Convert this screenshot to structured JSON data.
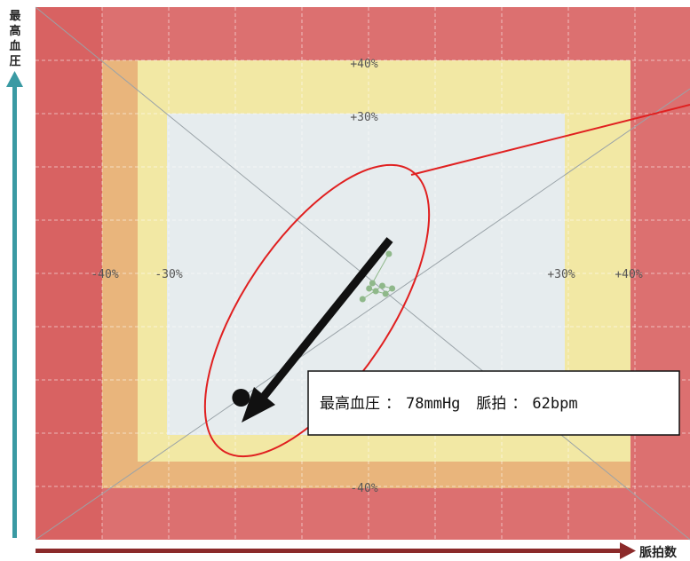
{
  "chart_data": {
    "type": "scatter",
    "title": "",
    "ylabel": "最高血圧",
    "xlabel": "脈拍数",
    "zone_labels": {
      "top_40": "+40%",
      "top_30": "+30%",
      "left_40": "-40%",
      "left_30": "-30%",
      "right_30": "+30%",
      "right_40": "+40%",
      "bottom_40": "-40%"
    },
    "zones": [
      {
        "name": "outer",
        "range_pct": [
          -60,
          60
        ],
        "color": "#dc7070"
      },
      {
        "name": "40",
        "range_pct": [
          -40,
          40
        ],
        "color": "#e9b57c"
      },
      {
        "name": "30",
        "range_pct": [
          -30,
          30
        ],
        "color": "#f2e8a4"
      },
      {
        "name": "center",
        "range_pct": [
          -30,
          30
        ],
        "color": "#e6ecee"
      }
    ],
    "points": [
      {
        "x": 3.5,
        "y": 4.0
      },
      {
        "x": 1.0,
        "y": -1.5
      },
      {
        "x": 0.5,
        "y": -2.5
      },
      {
        "x": 1.5,
        "y": -3.0
      },
      {
        "x": 3.0,
        "y": -3.5
      },
      {
        "x": 4.0,
        "y": -2.5
      },
      {
        "x": 2.5,
        "y": -2.0
      },
      {
        "x": -0.5,
        "y": -4.5
      }
    ],
    "highlight": {
      "x": -19,
      "y": -23
    },
    "callout": {
      "bp_label": "最高血圧",
      "separator": "：",
      "bp_value": "78mmHg",
      "pulse_label": "脈拍",
      "pulse_value": "62bpm"
    },
    "colors": {
      "outer": "#dc7070",
      "band40": "#e9b57c",
      "band30": "#f2e8a4",
      "center": "#e6ecee",
      "axis_y": "#3a9aa3",
      "axis_x": "#8b2a2a",
      "ellipse": "#e02020",
      "points": "#8fb88a"
    }
  }
}
